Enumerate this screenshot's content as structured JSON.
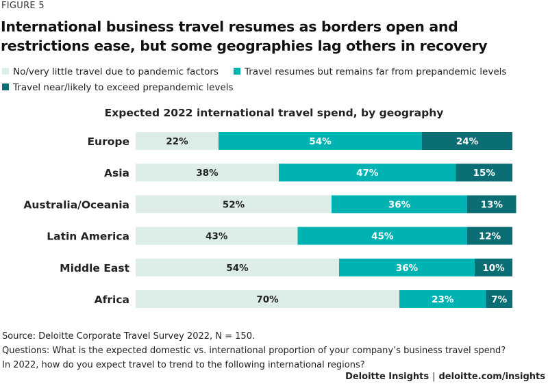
{
  "figure_label": "FIGURE 5",
  "title": "International business travel resumes as borders open and restrictions ease, but some geographies lag others in recovery",
  "colors": {
    "no_travel": "#ddeee8",
    "resumes": "#00b3b3",
    "near_exceed": "#0b6e74",
    "label_dark": "#222222",
    "label_light": "#ffffff"
  },
  "legend": {
    "items": [
      {
        "label": "No/very little travel due to pandemic factors",
        "color_key": "no_travel"
      },
      {
        "label": "Travel resumes but remains far from prepandemic levels",
        "color_key": "resumes"
      },
      {
        "label": "Travel near/likely to exceed prepandemic levels",
        "color_key": "near_exceed"
      }
    ]
  },
  "chart_data": {
    "type": "bar",
    "orientation": "horizontal",
    "stacked": true,
    "title": "Expected 2022 international travel spend, by geography",
    "categories": [
      "Europe",
      "Asia",
      "Australia/Oceania",
      "Latin America",
      "Middle East",
      "Africa"
    ],
    "series": [
      {
        "name": "No/very little travel due to pandemic factors",
        "values": [
          22,
          38,
          52,
          43,
          54,
          70
        ],
        "labels": [
          "22%",
          "38%",
          "52%",
          "43%",
          "54%",
          "70%"
        ]
      },
      {
        "name": "Travel resumes but remains far from prepandemic levels",
        "values": [
          54,
          47,
          36,
          45,
          36,
          23
        ],
        "labels": [
          "54%",
          "47%",
          "36%",
          "45%",
          "36%",
          "23%"
        ]
      },
      {
        "name": "Travel near/likely to exceed prepandemic levels",
        "values": [
          24,
          15,
          13,
          12,
          10,
          7
        ],
        "labels": [
          "24%",
          "15%",
          "13%",
          "12%",
          "10%",
          "7%"
        ]
      }
    ],
    "xlim": [
      0,
      100
    ],
    "unit": "%"
  },
  "footer": {
    "source": "Source: Deloitte Corporate Travel Survey 2022, N = 150.",
    "question1": "Questions: What is the expected domestic vs. international proportion of your company’s business travel spend?",
    "question2": "In 2022, how do you expect travel to trend to the following international regions?"
  },
  "credit": {
    "brand": "Deloitte Insights",
    "separator": "|",
    "url": "deloitte.com/insights"
  }
}
